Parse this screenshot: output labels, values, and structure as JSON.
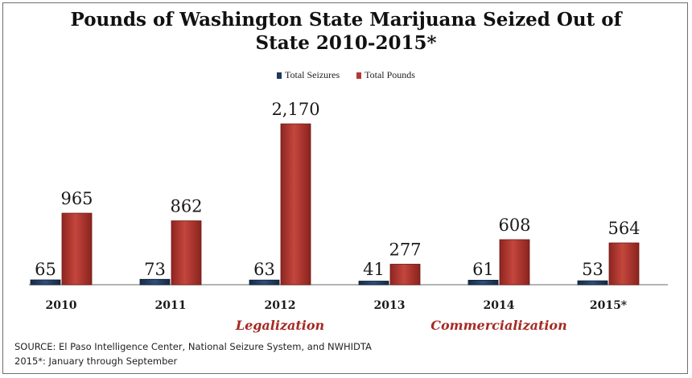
{
  "chart_data": {
    "type": "bar",
    "title_line1": "Pounds of Washington State Marijuana Seized Out of",
    "title_line2": "State 2010-2015*",
    "categories": [
      "2010",
      "2011",
      "2012",
      "2013",
      "2014",
      "2015*"
    ],
    "series": [
      {
        "name": "Total Seizures",
        "color": "#1f3a5c",
        "values": [
          65,
          73,
          63,
          41,
          61,
          53
        ]
      },
      {
        "name": "Total Pounds",
        "color": "#b53a33",
        "values": [
          965,
          862,
          2170,
          277,
          608,
          564
        ]
      }
    ],
    "data_labels": {
      "seizures": [
        "65",
        "73",
        "63",
        "41",
        "61",
        "53"
      ],
      "pounds": [
        "965",
        "862",
        "2,170",
        "277",
        "608",
        "564"
      ]
    },
    "annotations": [
      {
        "text": "Legalization",
        "category": "2012",
        "color": "#a52a23"
      },
      {
        "text": "Commercialization",
        "category": "2014",
        "color": "#a52a23"
      }
    ],
    "ylim": [
      0,
      2170
    ],
    "grid": false,
    "legend_position": "top-center"
  },
  "source": "SOURCE: El Paso Intelligence Center, National Seizure System, and NWHIDTA",
  "footnote": "2015*: January through September"
}
